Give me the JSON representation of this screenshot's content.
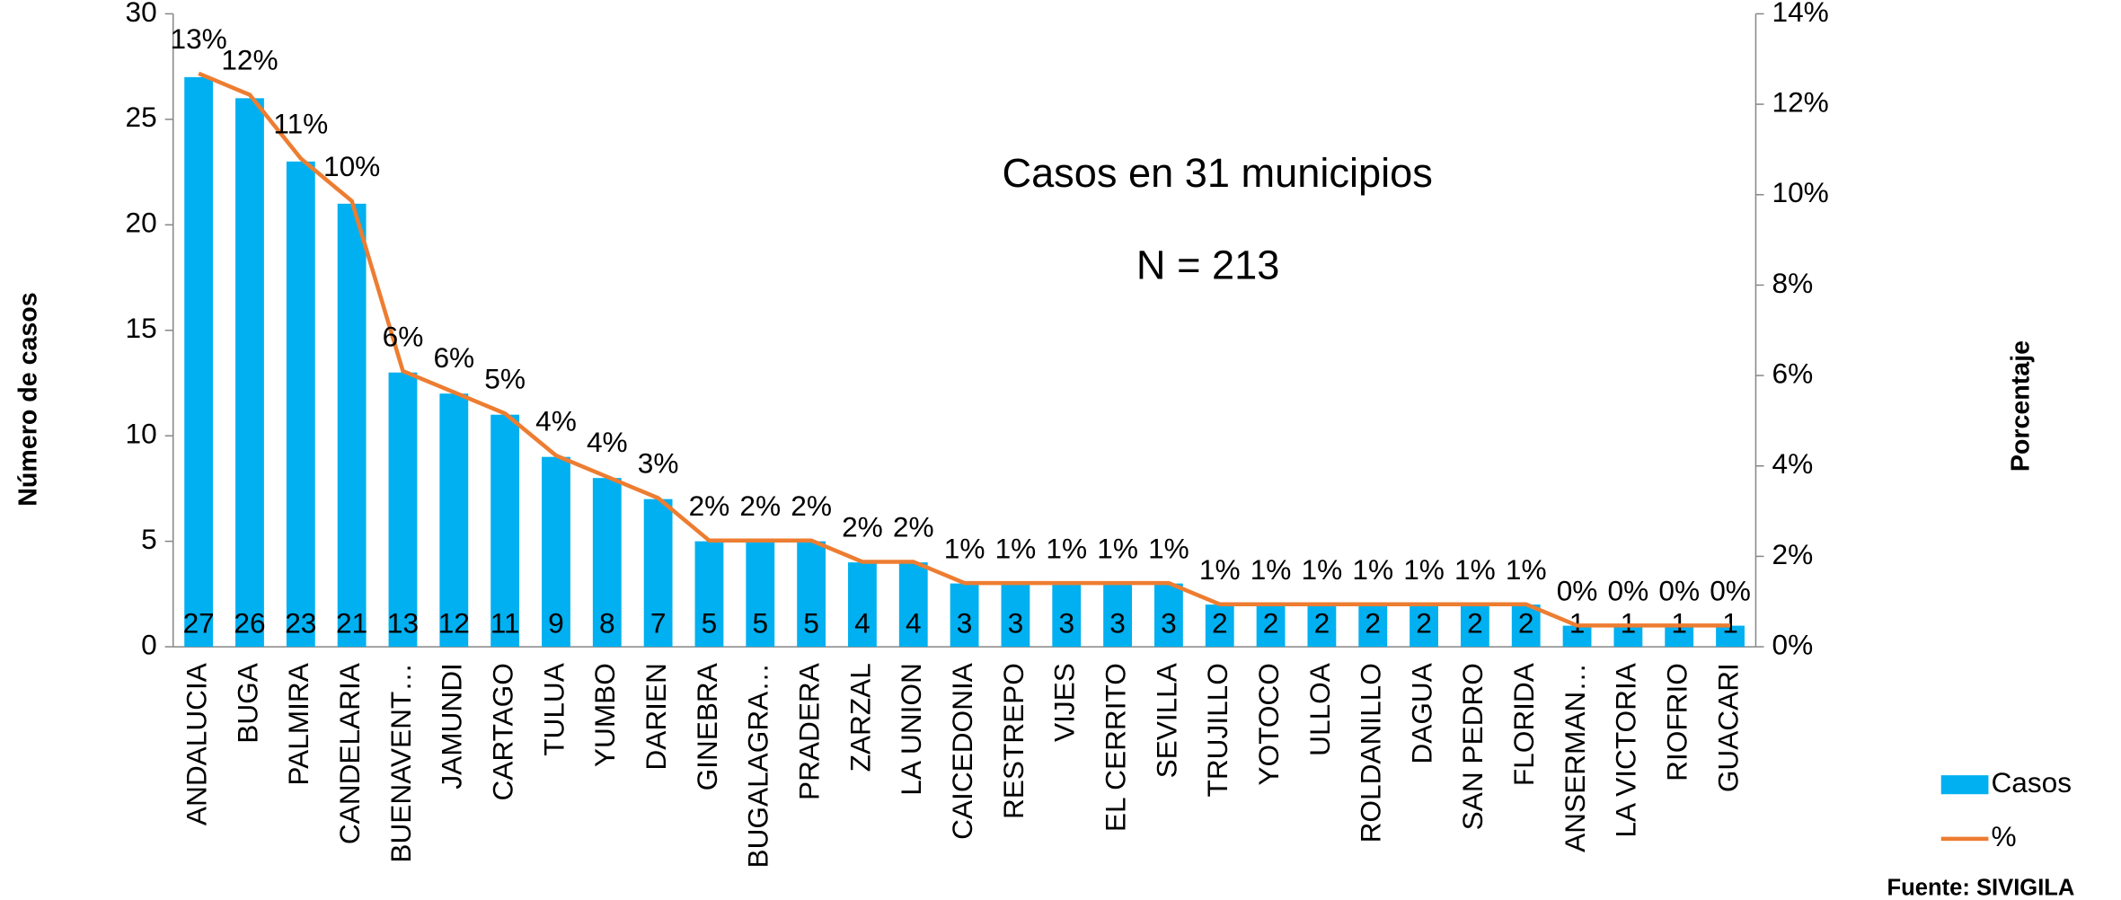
{
  "chart_data": {
    "type": "bar",
    "annotations": [
      "Casos en 31 municipios",
      "N = 213"
    ],
    "ylabel": "Número de casos",
    "y2label": "Porcentaje",
    "source": "Fuente: SIVIGILA",
    "categories": [
      "ANDALUCIA",
      "BUGA",
      "PALMIRA",
      "CANDELARIA",
      "BUENAVENT…",
      "JAMUNDI",
      "CARTAGO",
      "TULUA",
      "YUMBO",
      "DARIEN",
      "GINEBRA",
      "BUGALAGRA…",
      "PRADERA",
      "ZARZAL",
      "LA UNION",
      "CAICEDONIA",
      "RESTREPO",
      "VIJES",
      "EL CERRITO",
      "SEVILLA",
      "TRUJILLO",
      "YOTOCO",
      "ULLOA",
      "ROLDANILLO",
      "DAGUA",
      "SAN PEDRO",
      "FLORIDA",
      "ANSERMAN…",
      "LA VICTORIA",
      "RIOFRIO",
      "GUACARI"
    ],
    "series": [
      {
        "name": "Casos",
        "type": "bar",
        "color": "#00b0f0",
        "values": [
          27,
          26,
          23,
          21,
          13,
          12,
          11,
          9,
          8,
          7,
          5,
          5,
          5,
          4,
          4,
          3,
          3,
          3,
          3,
          3,
          2,
          2,
          2,
          2,
          2,
          2,
          2,
          1,
          1,
          1,
          1
        ]
      },
      {
        "name": "%",
        "type": "line",
        "axis": "y2",
        "color": "#ed7d31",
        "values": [
          12.68,
          12.21,
          10.8,
          9.86,
          6.1,
          5.63,
          5.16,
          4.23,
          3.76,
          3.29,
          2.35,
          2.35,
          2.35,
          1.88,
          1.88,
          1.41,
          1.41,
          1.41,
          1.41,
          1.41,
          0.94,
          0.94,
          0.94,
          0.94,
          0.94,
          0.94,
          0.94,
          0.47,
          0.47,
          0.47,
          0.47
        ],
        "value_labels": [
          "13%",
          "12%",
          "11%",
          "10%",
          "6%",
          "6%",
          "5%",
          "4%",
          "4%",
          "3%",
          "2%",
          "2%",
          "2%",
          "2%",
          "2%",
          "1%",
          "1%",
          "1%",
          "1%",
          "1%",
          "1%",
          "1%",
          "1%",
          "1%",
          "1%",
          "1%",
          "1%",
          "0%",
          "0%",
          "0%",
          "0%"
        ]
      }
    ],
    "ylim": [
      0,
      30
    ],
    "yticks": [
      0,
      5,
      10,
      15,
      20,
      25,
      30
    ],
    "y2lim": [
      0,
      14
    ],
    "y2ticks": [
      {
        "value": 0,
        "label": "0%"
      },
      {
        "value": 2,
        "label": "2%"
      },
      {
        "value": 4,
        "label": "4%"
      },
      {
        "value": 6,
        "label": "6%"
      },
      {
        "value": 8,
        "label": "8%"
      },
      {
        "value": 10,
        "label": "10%"
      },
      {
        "value": 12,
        "label": "12%"
      },
      {
        "value": 14,
        "label": "14%"
      }
    ],
    "legend": "right"
  }
}
